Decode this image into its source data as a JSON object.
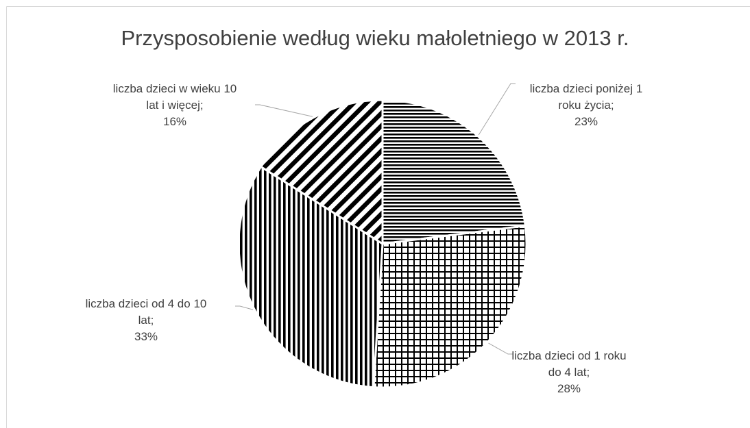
{
  "chart_data": {
    "type": "pie",
    "title": "Przysposobienie według wieku małoletniego w 2013 r.",
    "categories": [
      "liczba dzieci poniżej 1 roku życia",
      "liczba dzieci od 1 roku do 4 lat",
      "liczba dzieci od 4 do 10 lat",
      "liczba dzieci w wieku 10 lat i więcej"
    ],
    "values": [
      23,
      28,
      33,
      16
    ],
    "value_labels": [
      "23%",
      "28%",
      "33%",
      "16%"
    ],
    "data_label_separator": ";",
    "patterns": [
      "horizontal",
      "grid",
      "vertical",
      "diagonal"
    ],
    "color": "#000000"
  }
}
